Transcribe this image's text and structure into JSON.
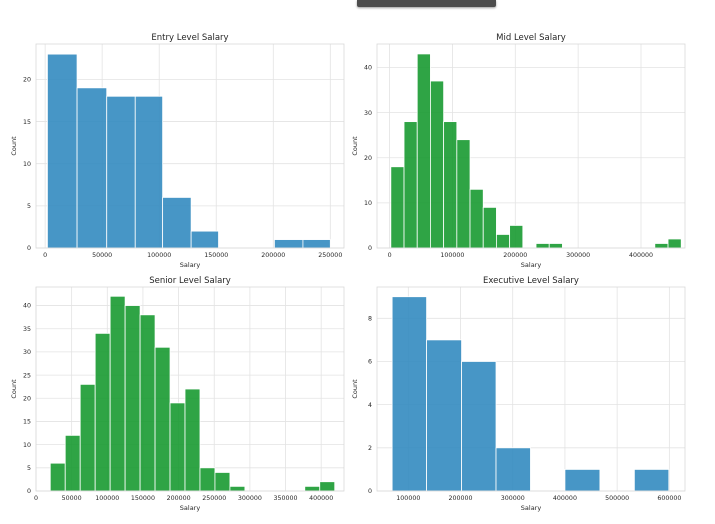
{
  "chart_data": [
    {
      "type": "bar",
      "title": "Entry Level Salary",
      "xlabel": "Salary",
      "ylabel": "Count",
      "xlim": [
        -8000,
        262000
      ],
      "ylim": [
        0,
        24.2
      ],
      "xticks": [
        0,
        50000,
        100000,
        150000,
        200000,
        250000
      ],
      "yticks": [
        0,
        5,
        10,
        15,
        20
      ],
      "color": "#2c86bd",
      "bins": [
        {
          "x0": 2000,
          "x1": 28000,
          "count": 23
        },
        {
          "x0": 28000,
          "x1": 54000,
          "count": 19
        },
        {
          "x0": 54000,
          "x1": 79000,
          "count": 18
        },
        {
          "x0": 79000,
          "x1": 103000,
          "count": 18
        },
        {
          "x0": 103000,
          "x1": 128000,
          "count": 6
        },
        {
          "x0": 128000,
          "x1": 152000,
          "count": 2
        },
        {
          "x0": 152000,
          "x1": 177000,
          "count": 0
        },
        {
          "x0": 177000,
          "x1": 201000,
          "count": 0
        },
        {
          "x0": 201000,
          "x1": 226000,
          "count": 1
        },
        {
          "x0": 226000,
          "x1": 250000,
          "count": 1
        }
      ]
    },
    {
      "type": "bar",
      "title": "Mid Level Salary",
      "xlabel": "Salary",
      "ylabel": "Count",
      "xlim": [
        -20000,
        470000
      ],
      "ylim": [
        0,
        45.2
      ],
      "xticks": [
        0,
        100000,
        200000,
        300000,
        400000
      ],
      "yticks": [
        0,
        10,
        20,
        30,
        40
      ],
      "color": "#109629",
      "bins": [
        {
          "x0": 2000,
          "x1": 23000,
          "count": 18
        },
        {
          "x0": 23000,
          "x1": 44000,
          "count": 28
        },
        {
          "x0": 44000,
          "x1": 65000,
          "count": 43
        },
        {
          "x0": 65000,
          "x1": 86000,
          "count": 37
        },
        {
          "x0": 86000,
          "x1": 107000,
          "count": 28
        },
        {
          "x0": 107000,
          "x1": 128000,
          "count": 24
        },
        {
          "x0": 128000,
          "x1": 149000,
          "count": 13
        },
        {
          "x0": 149000,
          "x1": 170000,
          "count": 9
        },
        {
          "x0": 170000,
          "x1": 191000,
          "count": 3
        },
        {
          "x0": 191000,
          "x1": 212000,
          "count": 5
        },
        {
          "x0": 212000,
          "x1": 233000,
          "count": 0
        },
        {
          "x0": 233000,
          "x1": 254000,
          "count": 1
        },
        {
          "x0": 254000,
          "x1": 275000,
          "count": 1
        },
        {
          "x0": 275000,
          "x1": 296000,
          "count": 0
        },
        {
          "x0": 296000,
          "x1": 317000,
          "count": 0
        },
        {
          "x0": 317000,
          "x1": 338000,
          "count": 0
        },
        {
          "x0": 338000,
          "x1": 359000,
          "count": 0
        },
        {
          "x0": 359000,
          "x1": 380000,
          "count": 0
        },
        {
          "x0": 380000,
          "x1": 401000,
          "count": 0
        },
        {
          "x0": 401000,
          "x1": 422000,
          "count": 0
        },
        {
          "x0": 422000,
          "x1": 443000,
          "count": 1
        },
        {
          "x0": 443000,
          "x1": 464000,
          "count": 2
        }
      ]
    },
    {
      "type": "bar",
      "title": "Senior Level Salary",
      "xlabel": "Salary",
      "ylabel": "Count",
      "xlim": [
        0,
        432000
      ],
      "ylim": [
        0,
        44
      ],
      "xticks": [
        0,
        50000,
        100000,
        150000,
        200000,
        250000,
        300000,
        350000,
        400000
      ],
      "yticks": [
        0,
        5,
        10,
        15,
        20,
        25,
        30,
        35,
        40
      ],
      "color": "#109629",
      "bins": [
        {
          "x0": 20000,
          "x1": 41000,
          "count": 6
        },
        {
          "x0": 41000,
          "x1": 62000,
          "count": 12
        },
        {
          "x0": 62000,
          "x1": 83000,
          "count": 23
        },
        {
          "x0": 83000,
          "x1": 104000,
          "count": 34
        },
        {
          "x0": 104000,
          "x1": 125000,
          "count": 42
        },
        {
          "x0": 125000,
          "x1": 146000,
          "count": 40
        },
        {
          "x0": 146000,
          "x1": 167000,
          "count": 38
        },
        {
          "x0": 167000,
          "x1": 188000,
          "count": 31
        },
        {
          "x0": 188000,
          "x1": 209000,
          "count": 19
        },
        {
          "x0": 209000,
          "x1": 230000,
          "count": 22
        },
        {
          "x0": 230000,
          "x1": 251000,
          "count": 5
        },
        {
          "x0": 251000,
          "x1": 272000,
          "count": 4
        },
        {
          "x0": 272000,
          "x1": 293000,
          "count": 1
        },
        {
          "x0": 293000,
          "x1": 314000,
          "count": 0
        },
        {
          "x0": 314000,
          "x1": 335000,
          "count": 0
        },
        {
          "x0": 335000,
          "x1": 356000,
          "count": 0
        },
        {
          "x0": 356000,
          "x1": 377000,
          "count": 0
        },
        {
          "x0": 377000,
          "x1": 398000,
          "count": 1
        },
        {
          "x0": 398000,
          "x1": 419000,
          "count": 2
        }
      ]
    },
    {
      "type": "bar",
      "title": "Executive Level Salary",
      "xlabel": "Salary",
      "ylabel": "Count",
      "xlim": [
        40000,
        630000
      ],
      "ylim": [
        0,
        9.45
      ],
      "xticks": [
        100000,
        200000,
        300000,
        400000,
        500000,
        600000
      ],
      "yticks": [
        0,
        2,
        4,
        6,
        8
      ],
      "color": "#2c86bd",
      "bins": [
        {
          "x0": 69000,
          "x1": 135000,
          "count": 9
        },
        {
          "x0": 135000,
          "x1": 202000,
          "count": 7
        },
        {
          "x0": 202000,
          "x1": 268000,
          "count": 6
        },
        {
          "x0": 268000,
          "x1": 334000,
          "count": 2
        },
        {
          "x0": 334000,
          "x1": 400000,
          "count": 0
        },
        {
          "x0": 400000,
          "x1": 467000,
          "count": 1
        },
        {
          "x0": 467000,
          "x1": 533000,
          "count": 0
        },
        {
          "x0": 533000,
          "x1": 599000,
          "count": 1
        }
      ]
    }
  ]
}
